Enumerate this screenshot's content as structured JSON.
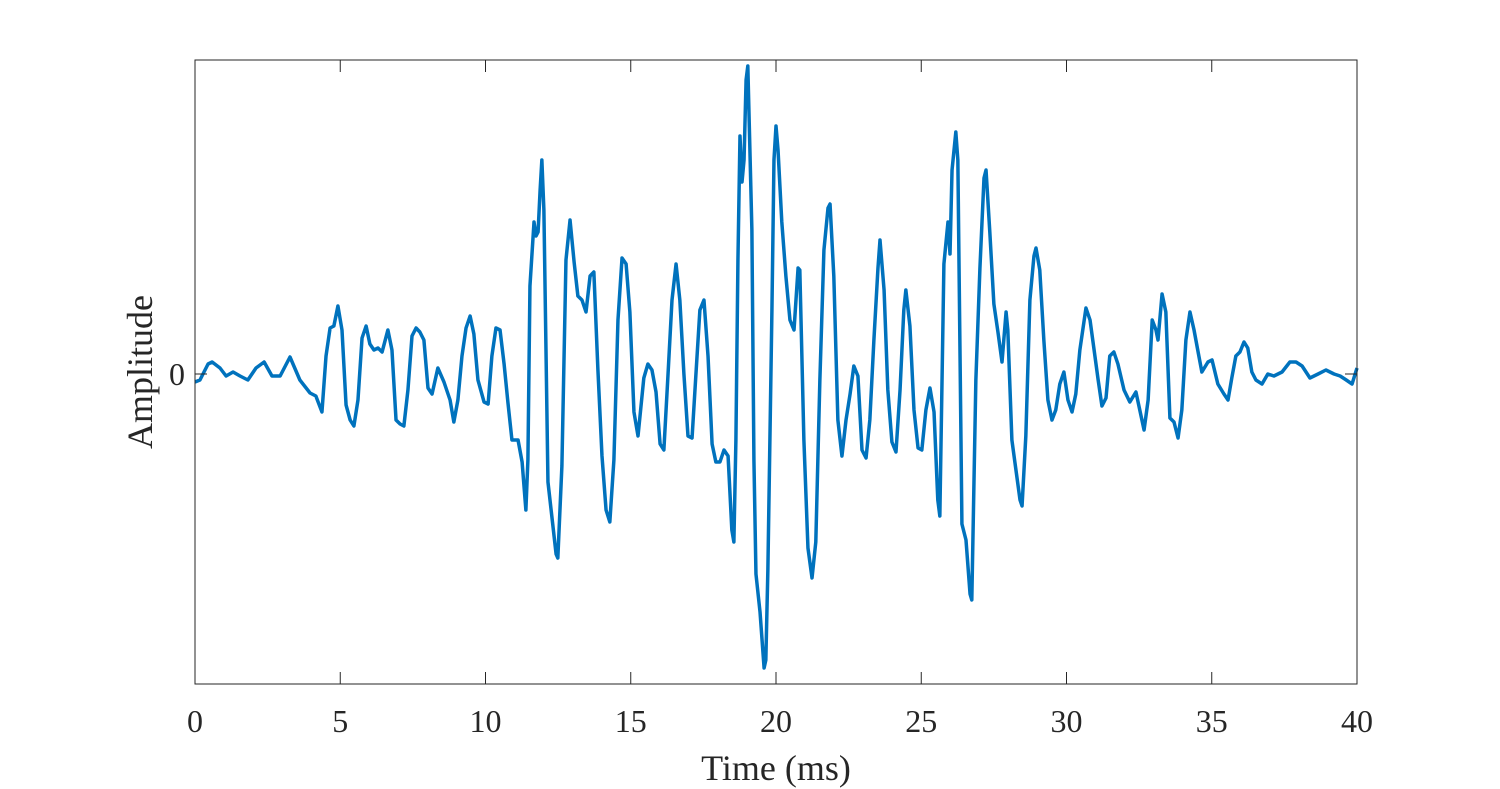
{
  "chart_data": {
    "type": "line",
    "x_label": "Time (ms)",
    "y_label": "Amplitude",
    "xlim": [
      0,
      40
    ],
    "xticks": [
      0,
      5,
      10,
      15,
      20,
      25,
      30,
      35,
      40
    ],
    "ylim": [
      -31,
      31.4
    ],
    "yticks": [
      0
    ],
    "series": [
      {
        "color": "#0072bd",
        "x": [
          0,
          0.17,
          0.45,
          0.59,
          0.86,
          1.07,
          1.31,
          1.55,
          1.82,
          2.1,
          2.38,
          2.65,
          2.93,
          3.27,
          3.61,
          3.96,
          4.16,
          4.37,
          4.51,
          4.65,
          4.78,
          4.92,
          5.06,
          5.2,
          5.34,
          5.47,
          5.61,
          5.75,
          5.89,
          6.02,
          6.16,
          6.3,
          6.44,
          6.64,
          6.78,
          6.92,
          7.06,
          7.19,
          7.33,
          7.47,
          7.61,
          7.74,
          7.88,
          8.02,
          8.16,
          8.36,
          8.57,
          8.78,
          8.91,
          9.05,
          9.19,
          9.33,
          9.47,
          9.6,
          9.74,
          9.95,
          10.09,
          10.22,
          10.36,
          10.5,
          10.64,
          10.77,
          10.91,
          11.12,
          11.26,
          11.39,
          11.46,
          11.53,
          11.67,
          11.74,
          11.81,
          11.88,
          11.94,
          12.01,
          12.15,
          12.29,
          12.43,
          12.49,
          12.63,
          12.77,
          12.91,
          13.05,
          13.18,
          13.32,
          13.46,
          13.6,
          13.73,
          13.87,
          14.01,
          14.15,
          14.28,
          14.42,
          14.56,
          14.7,
          14.84,
          14.97,
          15.11,
          15.25,
          15.45,
          15.59,
          15.73,
          15.87,
          16.01,
          16.14,
          16.28,
          16.42,
          16.56,
          16.69,
          16.83,
          16.97,
          17.11,
          17.24,
          17.38,
          17.52,
          17.66,
          17.8,
          17.93,
          18.07,
          18.21,
          18.35,
          18.48,
          18.55,
          18.62,
          18.69,
          18.76,
          18.83,
          18.9,
          18.97,
          19.03,
          19.17,
          19.24,
          19.31,
          19.45,
          19.59,
          19.65,
          19.72,
          19.86,
          19.93,
          20.0,
          20.07,
          20.2,
          20.34,
          20.48,
          20.62,
          20.76,
          20.82,
          20.96,
          21.1,
          21.24,
          21.37,
          21.51,
          21.65,
          21.79,
          21.86,
          21.99,
          22.13,
          22.27,
          22.41,
          22.55,
          22.68,
          22.82,
          22.96,
          23.1,
          23.23,
          23.37,
          23.51,
          23.58,
          23.72,
          23.85,
          23.99,
          24.13,
          24.27,
          24.4,
          24.47,
          24.61,
          24.75,
          24.89,
          25.02,
          25.16,
          25.3,
          25.44,
          25.57,
          25.64,
          25.78,
          25.92,
          25.99,
          26.06,
          26.19,
          26.26,
          26.4,
          26.54,
          26.68,
          26.74,
          26.88,
          27.02,
          27.16,
          27.23,
          27.36,
          27.5,
          27.64,
          27.78,
          27.92,
          27.98,
          28.12,
          28.26,
          28.4,
          28.47,
          28.6,
          28.74,
          28.88,
          28.95,
          29.08,
          29.22,
          29.36,
          29.5,
          29.63,
          29.77,
          29.91,
          30.05,
          30.19,
          30.32,
          30.46,
          30.67,
          30.81,
          30.95,
          31.09,
          31.22,
          31.36,
          31.49,
          31.63,
          31.77,
          31.98,
          32.18,
          32.39,
          32.67,
          32.81,
          32.95,
          33.08,
          33.15,
          33.29,
          33.42,
          33.56,
          33.7,
          33.84,
          33.97,
          34.11,
          34.25,
          34.39,
          34.53,
          34.66,
          34.87,
          35.01,
          35.21,
          35.42,
          35.56,
          35.69,
          35.83,
          35.97,
          36.11,
          36.24,
          36.38,
          36.52,
          36.73,
          36.93,
          37.14,
          37.42,
          37.69,
          37.9,
          38.11,
          38.38,
          38.66,
          38.93,
          39.21,
          39.42,
          39.63,
          39.83,
          40.0
        ],
        "values": [
          -0.8,
          -0.6,
          1.0,
          1.2,
          0.6,
          -0.2,
          0.2,
          -0.2,
          -0.6,
          0.6,
          1.2,
          -0.2,
          -0.2,
          1.7,
          -0.6,
          -1.9,
          -2.2,
          -3.8,
          1.8,
          4.6,
          4.8,
          6.8,
          4.4,
          -3.1,
          -4.6,
          -5.2,
          -2.6,
          3.6,
          4.8,
          3.0,
          2.4,
          2.6,
          2.2,
          4.4,
          2.4,
          -4.6,
          -5.0,
          -5.2,
          -1.6,
          3.8,
          4.6,
          4.2,
          3.4,
          -1.4,
          -2.0,
          0.6,
          -0.8,
          -2.6,
          -4.8,
          -2.6,
          1.8,
          4.6,
          5.8,
          4.0,
          -0.6,
          -2.8,
          -3.0,
          1.8,
          4.6,
          4.4,
          1.0,
          -2.8,
          -6.6,
          -6.6,
          -8.8,
          -13.6,
          -8.6,
          8.8,
          15.2,
          13.8,
          14.2,
          18.4,
          21.4,
          16.4,
          -10.8,
          -14.4,
          -18.0,
          -18.4,
          -9.2,
          11.4,
          15.4,
          11.2,
          7.8,
          7.4,
          6.2,
          9.8,
          10.2,
          0.4,
          -8.2,
          -13.6,
          -14.8,
          -8.6,
          5.4,
          11.6,
          11.0,
          6.2,
          -3.8,
          -6.2,
          -0.4,
          1.0,
          0.4,
          -1.8,
          -7.0,
          -7.6,
          -0.2,
          7.4,
          11.0,
          7.4,
          0,
          -6.2,
          -6.4,
          -0.2,
          6.4,
          7.4,
          1.8,
          -7.0,
          -8.8,
          -8.8,
          -7.6,
          -8.2,
          -15.6,
          -16.8,
          -6.6,
          11.4,
          23.8,
          19.2,
          21.4,
          29.4,
          30.8,
          14.4,
          -8.6,
          -20.0,
          -23.8,
          -29.4,
          -28.6,
          -19.6,
          6.4,
          21.4,
          24.8,
          22.4,
          15.2,
          9.8,
          5.4,
          4.4,
          10.6,
          10.4,
          -6.6,
          -17.4,
          -20.4,
          -16.8,
          -0.6,
          12.4,
          16.6,
          17.0,
          9.8,
          -4.6,
          -8.2,
          -4.6,
          -2.0,
          0.8,
          -0.2,
          -7.6,
          -8.4,
          -4.6,
          3.4,
          10.6,
          13.4,
          8.4,
          -1.6,
          -6.8,
          -7.8,
          -1.6,
          6.4,
          8.4,
          4.8,
          -3.6,
          -7.4,
          -7.6,
          -3.6,
          -1.4,
          -3.8,
          -12.6,
          -14.2,
          11.0,
          15.2,
          12.0,
          20.4,
          24.2,
          21.4,
          -15.0,
          -16.6,
          -22.0,
          -22.6,
          -0.6,
          10.6,
          19.6,
          20.4,
          14.2,
          7.0,
          4.2,
          1.2,
          6.2,
          4.4,
          -6.6,
          -9.6,
          -12.6,
          -13.2,
          -6.2,
          7.4,
          11.8,
          12.6,
          10.4,
          3.4,
          -2.6,
          -4.6,
          -3.6,
          -1.0,
          0.2,
          -2.6,
          -3.8,
          -2.0,
          2.4,
          6.6,
          5.4,
          2.4,
          -0.6,
          -3.2,
          -2.4,
          1.8,
          2.2,
          1.0,
          -1.6,
          -2.8,
          -1.8,
          -5.6,
          -2.6,
          5.4,
          4.4,
          3.4,
          8.0,
          6.2,
          -4.4,
          -4.8,
          -6.4,
          -3.6,
          3.4,
          6.2,
          4.4,
          2.2,
          0.2,
          1.2,
          1.4,
          -1.0,
          -2.0,
          -2.6,
          -0.4,
          1.8,
          2.2,
          3.2,
          2.6,
          0.2,
          -0.6,
          -1.0,
          0,
          -0.2,
          0.2,
          1.2,
          1.2,
          0.8,
          -0.4,
          0,
          0.4,
          0,
          -0.2,
          -0.6,
          -1.0,
          0.6
        ]
      }
    ]
  }
}
